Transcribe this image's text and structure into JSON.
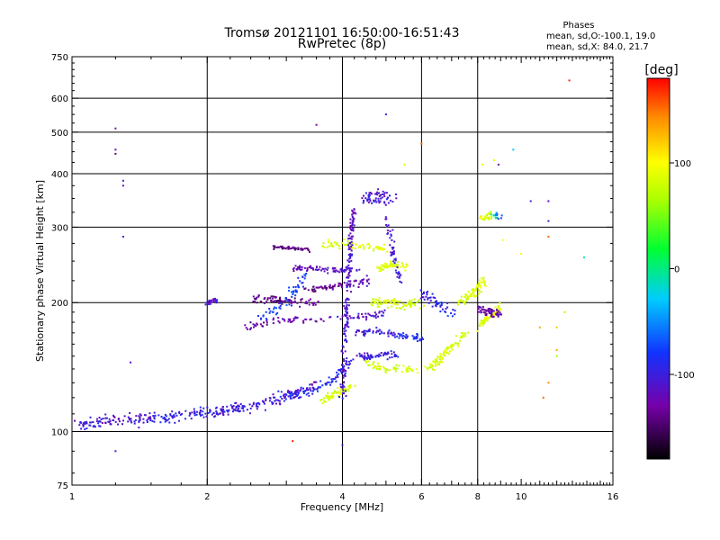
{
  "chart_data": {
    "type": "scatter",
    "title": "Tromsø 20121101 16:50:00-16:51:43",
    "subtitle": "RwPretec (8p)",
    "xlabel": "Frequency [MHz]",
    "ylabel": "Stationary phase Virtual Height [km]",
    "x_scale": "log",
    "y_scale": "log",
    "xlim": [
      1,
      16
    ],
    "ylim": [
      75,
      750
    ],
    "x_ticks": [
      1,
      2,
      4,
      6,
      8,
      10,
      16
    ],
    "x_tick_labels": [
      "1",
      "2",
      "4",
      "6",
      "8",
      "10",
      "16"
    ],
    "y_ticks": [
      75,
      100,
      200,
      300,
      400,
      500,
      600,
      750
    ],
    "y_tick_labels": [
      "75",
      "100",
      "200",
      "300",
      "400",
      "500",
      "600",
      "750"
    ],
    "x_major_grid": [
      2,
      4,
      6,
      8
    ],
    "y_major_grid": [
      100,
      200,
      300,
      400,
      500,
      600
    ],
    "grid": true,
    "phase_stats": {
      "title": "Phases",
      "line1": "mean, sd,O:-100.1, 19.0",
      "line2": "mean, sd,X:  84.0, 21.7"
    },
    "colorbar": {
      "label": "[deg]",
      "range": [
        -180,
        180
      ],
      "ticks": [
        100,
        0,
        -100
      ],
      "tick_labels": [
        "100",
        "0",
        "-100"
      ]
    },
    "traces": [
      {
        "points": [
          [
            1.0,
            104,
            -110
          ],
          [
            1.1,
            104,
            -105
          ],
          [
            1.2,
            106,
            -115
          ],
          [
            1.4,
            107,
            -110
          ],
          [
            1.6,
            108,
            -100
          ],
          [
            1.9,
            110,
            -105
          ],
          [
            2.2,
            112,
            -110
          ],
          [
            2.5,
            115,
            -105
          ],
          [
            2.8,
            118,
            -110
          ],
          [
            3.1,
            122,
            -115
          ],
          [
            3.5,
            128,
            -120
          ]
        ],
        "spread": 0.03,
        "n": 320
      },
      {
        "points": [
          [
            3.0,
            120,
            -95
          ],
          [
            3.4,
            125,
            -100
          ],
          [
            3.8,
            132,
            -95
          ],
          [
            4.0,
            140,
            -100
          ],
          [
            4.2,
            148,
            -110
          ]
        ],
        "spread": 0.025,
        "n": 90
      },
      {
        "points": [
          [
            3.6,
            118,
            80
          ],
          [
            3.9,
            123,
            85
          ],
          [
            4.2,
            128,
            80
          ]
        ],
        "spread": 0.02,
        "n": 70
      },
      {
        "points": [
          [
            2.0,
            200,
            -115
          ],
          [
            2.1,
            203,
            -110
          ]
        ],
        "spread": 0.015,
        "n": 25
      },
      {
        "points": [
          [
            2.5,
            205,
            -140
          ],
          [
            2.8,
            203,
            -140
          ],
          [
            3.2,
            200,
            -135
          ],
          [
            3.5,
            200,
            -130
          ]
        ],
        "spread": 0.02,
        "n": 80
      },
      {
        "points": [
          [
            2.6,
            180,
            -80
          ],
          [
            2.9,
            195,
            -85
          ],
          [
            3.1,
            210,
            -85
          ],
          [
            3.3,
            230,
            -90
          ]
        ],
        "spread": 0.03,
        "n": 60
      },
      {
        "points": [
          [
            2.4,
            175,
            -130
          ],
          [
            2.9,
            182,
            -130
          ],
          [
            3.5,
            182,
            -125
          ],
          [
            4.0,
            184,
            -120
          ],
          [
            4.5,
            186,
            -115
          ],
          [
            5.0,
            190,
            -110
          ]
        ],
        "spread": 0.02,
        "n": 90
      },
      {
        "points": [
          [
            3.3,
            215,
            -140
          ],
          [
            3.8,
            218,
            -135
          ],
          [
            4.2,
            222,
            -130
          ],
          [
            4.6,
            225,
            -120
          ]
        ],
        "spread": 0.02,
        "n": 70
      },
      {
        "points": [
          [
            3.1,
            240,
            -125
          ],
          [
            3.5,
            240,
            -120
          ],
          [
            4.0,
            238,
            -115
          ],
          [
            4.4,
            240,
            -110
          ]
        ],
        "spread": 0.015,
        "n": 70
      },
      {
        "points": [
          [
            2.8,
            270,
            -145
          ],
          [
            3.1,
            268,
            -140
          ],
          [
            3.4,
            265,
            -140
          ]
        ],
        "spread": 0.01,
        "n": 45
      },
      {
        "points": [
          [
            3.6,
            272,
            80
          ],
          [
            4.0,
            275,
            85
          ],
          [
            4.5,
            270,
            85
          ],
          [
            5.0,
            265,
            90
          ]
        ],
        "spread": 0.02,
        "n": 70
      },
      {
        "points": [
          [
            4.0,
            120,
            -110
          ],
          [
            4.05,
            160,
            -110
          ],
          [
            4.1,
            200,
            -110
          ],
          [
            4.15,
            250,
            -115
          ],
          [
            4.2,
            310,
            -120
          ],
          [
            4.25,
            330,
            -115
          ]
        ],
        "spread": 0.02,
        "n": 180
      },
      {
        "points": [
          [
            4.3,
            170,
            -110
          ],
          [
            4.8,
            172,
            -105
          ],
          [
            5.3,
            168,
            -100
          ],
          [
            6.0,
            165,
            -95
          ]
        ],
        "spread": 0.02,
        "n": 80
      },
      {
        "points": [
          [
            4.3,
            150,
            -110
          ],
          [
            4.8,
            150,
            -105
          ],
          [
            5.3,
            152,
            -100
          ]
        ],
        "spread": 0.02,
        "n": 60
      },
      {
        "points": [
          [
            4.6,
            200,
            80
          ],
          [
            5.0,
            200,
            85
          ],
          [
            5.5,
            198,
            80
          ],
          [
            6.0,
            200,
            70
          ]
        ],
        "spread": 0.025,
        "n": 80
      },
      {
        "points": [
          [
            4.8,
            240,
            85
          ],
          [
            5.2,
            245,
            85
          ],
          [
            5.6,
            243,
            80
          ]
        ],
        "spread": 0.02,
        "n": 60
      },
      {
        "points": [
          [
            4.5,
            145,
            75
          ],
          [
            5.0,
            140,
            80
          ],
          [
            5.5,
            140,
            80
          ],
          [
            6.0,
            138,
            75
          ]
        ],
        "spread": 0.02,
        "n": 60
      },
      {
        "points": [
          [
            4.4,
            350,
            -110
          ],
          [
            4.8,
            355,
            -115
          ],
          [
            5.2,
            350,
            -110
          ]
        ],
        "spread": 0.04,
        "n": 60
      },
      {
        "points": [
          [
            5.0,
            320,
            -120
          ],
          [
            5.2,
            260,
            -110
          ],
          [
            5.4,
            220,
            -100
          ]
        ],
        "spread": 0.02,
        "n": 50
      },
      {
        "points": [
          [
            6.2,
            140,
            80
          ],
          [
            6.6,
            148,
            85
          ],
          [
            7.0,
            158,
            80
          ],
          [
            7.5,
            170,
            75
          ]
        ],
        "spread": 0.025,
        "n": 90
      },
      {
        "points": [
          [
            7.3,
            200,
            80
          ],
          [
            7.8,
            210,
            85
          ],
          [
            8.3,
            225,
            85
          ]
        ],
        "spread": 0.025,
        "n": 70
      },
      {
        "points": [
          [
            8.0,
            175,
            80
          ],
          [
            8.4,
            185,
            85
          ],
          [
            8.8,
            190,
            90
          ],
          [
            9.0,
            196,
            85
          ]
        ],
        "spread": 0.02,
        "n": 70
      },
      {
        "points": [
          [
            8.0,
            195,
            -130
          ],
          [
            8.6,
            190,
            -125
          ],
          [
            9.0,
            188,
            -120
          ]
        ],
        "spread": 0.025,
        "n": 60
      },
      {
        "points": [
          [
            8.0,
            315,
            85
          ],
          [
            8.5,
            318,
            90
          ],
          [
            9.0,
            318,
            -110
          ]
        ],
        "spread": 0.02,
        "n": 40
      },
      {
        "points": [
          [
            6.0,
            210,
            -110
          ],
          [
            6.5,
            200,
            -100
          ],
          [
            7.0,
            190,
            -95
          ]
        ],
        "spread": 0.03,
        "n": 50
      }
    ],
    "sparse_points": [
      [
        1.25,
        510,
        -120
      ],
      [
        1.25,
        445,
        -140
      ],
      [
        1.25,
        455,
        -120
      ],
      [
        1.3,
        385,
        -110
      ],
      [
        1.3,
        375,
        -120
      ],
      [
        1.3,
        285,
        -110
      ],
      [
        1.35,
        145,
        -120
      ],
      [
        1.25,
        90,
        -100
      ],
      [
        3.5,
        520,
        -130
      ],
      [
        5.0,
        550,
        -110
      ],
      [
        6.0,
        470,
        150
      ],
      [
        8.7,
        430,
        90
      ],
      [
        8.9,
        420,
        -130
      ],
      [
        9.6,
        455,
        -30
      ],
      [
        10.5,
        345,
        -110
      ],
      [
        11.5,
        345,
        -120
      ],
      [
        11.5,
        310,
        -110
      ],
      [
        11.5,
        285,
        150
      ],
      [
        13.8,
        255,
        0
      ],
      [
        12.5,
        190,
        60
      ],
      [
        12.0,
        175,
        120
      ],
      [
        12.0,
        155,
        130
      ],
      [
        11.5,
        130,
        140
      ],
      [
        11.2,
        120,
        150
      ],
      [
        12.8,
        660,
        170
      ],
      [
        3.1,
        95,
        170
      ],
      [
        4.0,
        93,
        -110
      ],
      [
        5.5,
        420,
        80
      ],
      [
        8.2,
        420,
        90
      ],
      [
        9.1,
        280,
        100
      ],
      [
        10.0,
        260,
        100
      ],
      [
        12.0,
        150,
        60
      ],
      [
        11.0,
        175,
        130
      ]
    ]
  }
}
